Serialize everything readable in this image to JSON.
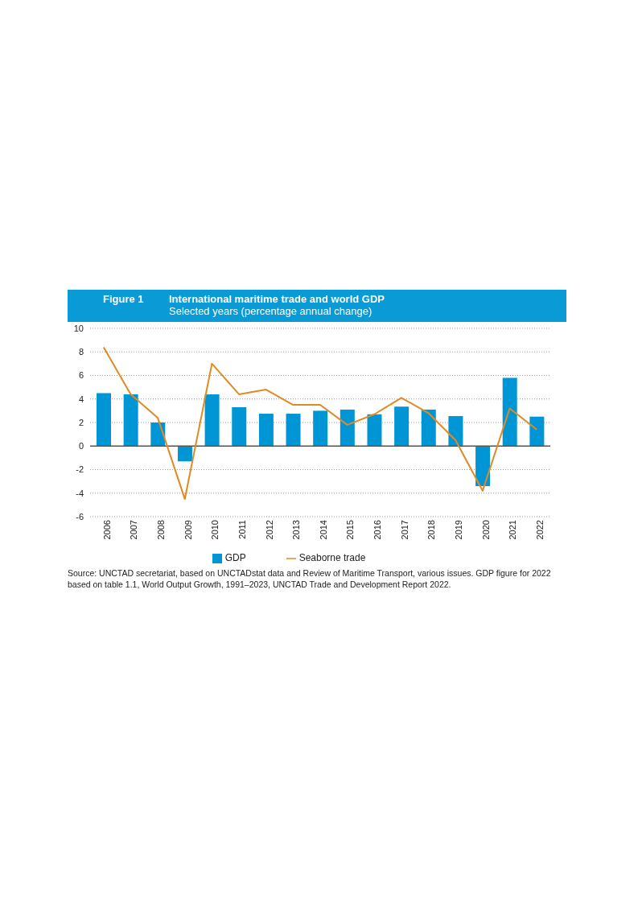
{
  "chart_data": {
    "type": "bar",
    "title": "International maritime trade and world GDP",
    "subtitle": "Selected years (percentage annual change)",
    "annotations": [
      "Figure 1",
      "Source:  UNCTAD secretariat, based on UNCTADstat data and Review of Maritime Transport, various issues. GDP figure for 2022 based on table 1.1, World Output Growth, 1991–2023, UNCTAD Trade and Development Report 2022."
    ],
    "categories": [
      "2006",
      "2007",
      "2008",
      "2009",
      "2010",
      "2011",
      "2012",
      "2013",
      "2014",
      "2015",
      "2016",
      "2017",
      "2018",
      "2019",
      "2020",
      "2021",
      "2022"
    ],
    "series": [
      {
        "name": "GDP",
        "color": "#0096d6",
        "values": [
          4.5,
          4.4,
          2.0,
          -1.3,
          4.4,
          3.3,
          2.75,
          2.75,
          3.0,
          3.1,
          2.7,
          3.35,
          3.1,
          2.55,
          -3.4,
          5.8,
          2.5
        ]
      },
      {
        "name": "Seaborne trade",
        "type": "line",
        "color": "#e08a24",
        "values": [
          8.4,
          4.4,
          2.4,
          -4.5,
          7.0,
          4.4,
          4.8,
          3.5,
          3.5,
          1.8,
          2.7,
          4.1,
          2.8,
          0.5,
          -3.8,
          3.2,
          1.4
        ]
      }
    ],
    "ylim": [
      -6,
      10
    ],
    "yticks": [
      -6,
      -4,
      -2,
      0,
      2,
      4,
      6,
      8,
      10
    ],
    "grid": "y",
    "legend": "bottom",
    "marker": "none",
    "line_style": "solid"
  }
}
